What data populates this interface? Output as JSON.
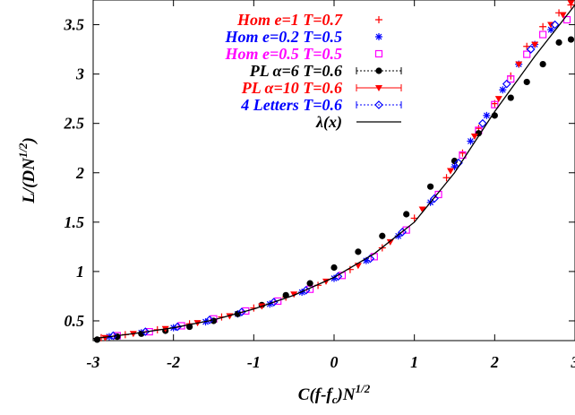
{
  "chart_data": {
    "type": "scatter",
    "title": "",
    "xlabel": {
      "base": "C(f-f",
      "sub": "c",
      "mid": ")N",
      "sup": "1/2"
    },
    "ylabel": {
      "base": "L/(DN",
      "sup": "1/2",
      "tail": ")"
    },
    "xlim": [
      -3,
      3
    ],
    "ylim": [
      0.3,
      3.75
    ],
    "x_ticks": [
      -3,
      -2,
      -1,
      0,
      1,
      2,
      3
    ],
    "x_tick_labels": [
      "-3",
      "-2",
      "-1",
      "0",
      "1",
      "2",
      "3"
    ],
    "y_ticks": [
      0.5,
      1,
      1.5,
      2,
      2.5,
      3,
      3.5
    ],
    "y_tick_labels": [
      "0.5",
      "1",
      "1.5",
      "2",
      "2.5",
      "3",
      "3.5"
    ],
    "grid": false,
    "legend_position": "top-left",
    "series": [
      {
        "name": "Hom e=1 T=0.7",
        "color": "#ff0000",
        "marker": "plus",
        "x": [
          -2.9,
          -2.6,
          -2.2,
          -1.8,
          -1.4,
          -1.0,
          -0.6,
          -0.2,
          0.2,
          0.6,
          1.0,
          1.4,
          1.6,
          1.8,
          2.0,
          2.2,
          2.4,
          2.6,
          2.8,
          2.95
        ],
        "y": [
          0.33,
          0.36,
          0.41,
          0.47,
          0.54,
          0.63,
          0.74,
          0.86,
          1.02,
          1.24,
          1.54,
          1.95,
          2.2,
          2.45,
          2.7,
          2.98,
          3.28,
          3.48,
          3.62,
          3.7
        ]
      },
      {
        "name": "Hom e=0.2 T=0.5",
        "color": "#0000ff",
        "marker": "asterisk",
        "x": [
          -2.8,
          -2.4,
          -2.0,
          -1.6,
          -1.2,
          -0.8,
          -0.4,
          0.0,
          0.4,
          0.8,
          1.2,
          1.5,
          1.7,
          1.9,
          2.1,
          2.3,
          2.5,
          2.7
        ],
        "y": [
          0.34,
          0.38,
          0.43,
          0.49,
          0.57,
          0.67,
          0.79,
          0.93,
          1.11,
          1.36,
          1.7,
          2.06,
          2.32,
          2.58,
          2.84,
          3.1,
          3.3,
          3.45
        ]
      },
      {
        "name": "Hom e=0.5 T=0.5",
        "color": "#ff00ff",
        "marker": "square",
        "x": [
          -2.7,
          -2.3,
          -1.9,
          -1.5,
          -1.1,
          -0.7,
          -0.3,
          0.1,
          0.5,
          0.9,
          1.3,
          1.6,
          1.8,
          2.0,
          2.2,
          2.4,
          2.6,
          2.9
        ],
        "y": [
          0.35,
          0.39,
          0.45,
          0.52,
          0.6,
          0.7,
          0.82,
          0.96,
          1.15,
          1.42,
          1.78,
          2.18,
          2.43,
          2.69,
          2.95,
          3.2,
          3.4,
          3.55
        ]
      },
      {
        "name": "PL α=6 T=0.6",
        "color": "#000000",
        "marker": "circle",
        "x": [
          -2.95,
          -2.7,
          -2.4,
          -2.1,
          -1.8,
          -1.5,
          -1.2,
          -0.9,
          -0.6,
          -0.3,
          0.0,
          0.3,
          0.6,
          0.9,
          1.2,
          1.5,
          1.8,
          2.0,
          2.2,
          2.4,
          2.6,
          2.8,
          2.95
        ],
        "y": [
          0.31,
          0.34,
          0.37,
          0.4,
          0.44,
          0.5,
          0.57,
          0.66,
          0.76,
          0.88,
          1.04,
          1.2,
          1.36,
          1.58,
          1.86,
          2.12,
          2.4,
          2.58,
          2.76,
          2.92,
          3.1,
          3.32,
          3.35
        ]
      },
      {
        "name": "PL α=10 T=0.6",
        "color": "#ff0000",
        "marker": "triangle-down",
        "x": [
          -2.85,
          -2.5,
          -2.1,
          -1.7,
          -1.3,
          -0.9,
          -0.5,
          -0.1,
          0.3,
          0.7,
          1.1,
          1.45,
          1.75,
          2.05,
          2.3,
          2.5,
          2.7,
          2.85,
          2.95
        ],
        "y": [
          0.33,
          0.37,
          0.42,
          0.48,
          0.55,
          0.65,
          0.77,
          0.9,
          1.06,
          1.3,
          1.63,
          2.02,
          2.37,
          2.75,
          3.1,
          3.3,
          3.5,
          3.6,
          3.72
        ]
      },
      {
        "name": "4 Letters T=0.6",
        "color": "#0000ff",
        "marker": "diamond",
        "x": [
          -2.75,
          -2.35,
          -1.95,
          -1.55,
          -1.15,
          -0.75,
          -0.35,
          0.05,
          0.45,
          0.85,
          1.25,
          1.55,
          1.85,
          2.15,
          2.45,
          2.75
        ],
        "y": [
          0.35,
          0.39,
          0.44,
          0.51,
          0.59,
          0.69,
          0.81,
          0.95,
          1.13,
          1.4,
          1.74,
          2.1,
          2.5,
          2.9,
          3.25,
          3.5
        ]
      },
      {
        "name": "λ(x)",
        "color": "#000000",
        "marker": "line",
        "x": [
          -3.0,
          -2.5,
          -2.0,
          -1.5,
          -1.0,
          -0.5,
          0.0,
          0.5,
          1.0,
          1.5,
          2.0,
          2.5,
          3.0
        ],
        "y": [
          0.32,
          0.37,
          0.43,
          0.51,
          0.62,
          0.76,
          0.94,
          1.18,
          1.5,
          2.0,
          2.62,
          3.18,
          3.7
        ]
      }
    ]
  }
}
